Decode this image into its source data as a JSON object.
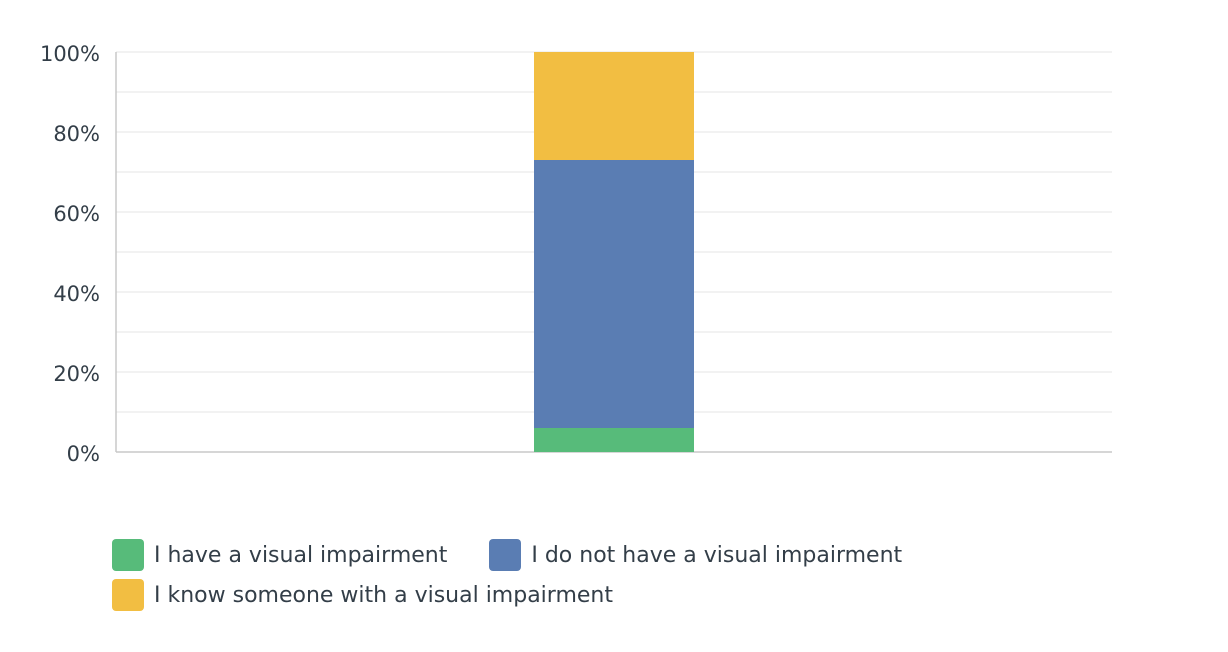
{
  "chart_data": {
    "type": "bar",
    "stacked": true,
    "categories": [
      ""
    ],
    "series": [
      {
        "name": "I have a visual impairment",
        "values": [
          6
        ],
        "color": "#57bb7a"
      },
      {
        "name": "I do not have a visual impairment",
        "values": [
          67
        ],
        "color": "#5a7db3"
      },
      {
        "name": "I know someone with a visual impairment",
        "values": [
          27
        ],
        "color": "#f2be42"
      }
    ],
    "y_ticks": [
      "0%",
      "20%",
      "40%",
      "60%",
      "80%",
      "100%"
    ],
    "ylim": [
      0,
      100
    ],
    "grid": true,
    "legend_position": "bottom"
  },
  "legend": {
    "items": [
      {
        "label": "I have a visual impairment",
        "color": "#57bb7a"
      },
      {
        "label": "I do not have a visual impairment",
        "color": "#5a7db3"
      },
      {
        "label": "I know someone with a visual impairment",
        "color": "#f2be42"
      }
    ]
  }
}
